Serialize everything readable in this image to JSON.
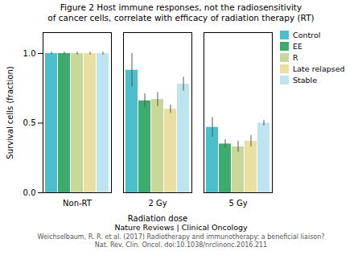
{
  "chart_data": {
    "type": "bar",
    "title": "Figure 2 Host immune responses, not the radiosensitivity\nof cancer cells, correlate with efficacy of radiation therapy (RT)",
    "categories": [
      "Non-RT",
      "2 Gy",
      "5 Gy"
    ],
    "xlabel": "Radiation dose",
    "ylabel": "Survival cells (fraction)",
    "series": [
      {
        "name": "Control",
        "color": "#4BBFCB",
        "values": [
          1.0,
          0.88,
          0.47
        ],
        "errors": [
          0.01,
          0.12,
          0.07
        ]
      },
      {
        "name": "EE",
        "color": "#3DAA6E",
        "values": [
          1.0,
          0.66,
          0.35
        ],
        "errors": [
          0.01,
          0.05,
          0.03
        ]
      },
      {
        "name": "R",
        "color": "#C8D89A",
        "values": [
          1.0,
          0.67,
          0.33
        ],
        "errors": [
          0.01,
          0.05,
          0.04
        ]
      },
      {
        "name": "Late relapsed",
        "color": "#E8DFA0",
        "values": [
          1.0,
          0.6,
          0.37
        ],
        "errors": [
          0.01,
          0.03,
          0.04
        ]
      },
      {
        "name": "Stable",
        "color": "#BEE4F0",
        "values": [
          1.0,
          0.78,
          0.5
        ],
        "errors": [
          0.01,
          0.05,
          0.02
        ]
      }
    ],
    "ylim": [
      0.0,
      1.15
    ],
    "yticks": [
      {
        "value": 0.0,
        "label": "0.0"
      },
      {
        "value": 0.5,
        "label": "0.5"
      },
      {
        "value": 1.0,
        "label": "1.0"
      }
    ],
    "grid": false,
    "legend": "upper right",
    "annotations": [
      "Nature Reviews | Clinical Oncology",
      "Weichselbaum, R. R. et al. (2017) Radiotherapy and immunotherapy: a beneficial liaison?\nNat. Rev. Clin. Oncol. doi:10.1038/nrclinonc.2016.211"
    ]
  }
}
